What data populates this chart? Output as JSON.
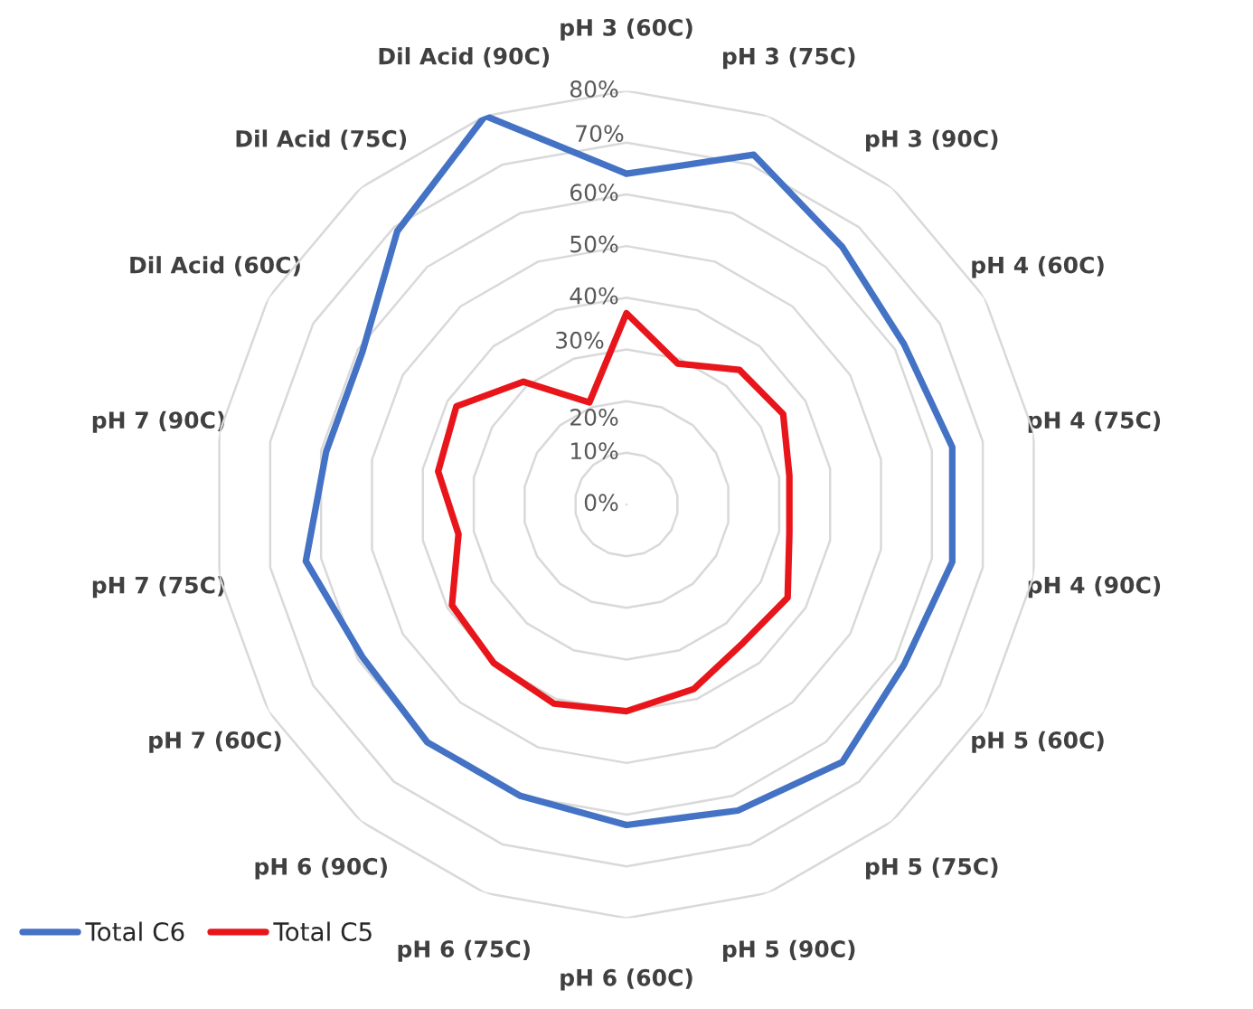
{
  "chart_data": {
    "type": "radar",
    "categories": [
      "pH 3 (60C)",
      "pH 3 (75C)",
      "pH 3 (90C)",
      "pH 4 (60C)",
      "pH 4 (75C)",
      "pH 4 (90C)",
      "pH 5 (60C)",
      "pH 5 (75C)",
      "pH 5 (90C)",
      "pH 6 (60C)",
      "pH 6 (75C)",
      "pH 6 (90C)",
      "pH 7 (60C)",
      "pH 7 (75C)",
      "pH 7 (90C)",
      "Dil Acid (60C)",
      "Dil Acid (75C)",
      "Dil Acid (90C)"
    ],
    "series": [
      {
        "name": "Total C6",
        "color": "#4472c4",
        "values": [
          64,
          72,
          65,
          62,
          64,
          64,
          62,
          65,
          63,
          62,
          60,
          60,
          59,
          63,
          59,
          59,
          69,
          80
        ]
      },
      {
        "name": "Total C5",
        "color": "#e8161b",
        "values": [
          37,
          29,
          34,
          35,
          32,
          32,
          36,
          35,
          38,
          40,
          41,
          40,
          39,
          33,
          37,
          38,
          31,
          21
        ]
      }
    ],
    "ylim": [
      0,
      80
    ],
    "yticks": [
      {
        "value": 0,
        "label": "0%"
      },
      {
        "value": 10,
        "label": "10%"
      },
      {
        "value": 20,
        "label": "20%"
      },
      {
        "value": 30,
        "label": "30%"
      },
      {
        "value": 40,
        "label": "40%"
      },
      {
        "value": 50,
        "label": "50%"
      },
      {
        "value": 60,
        "label": "60%"
      },
      {
        "value": 70,
        "label": "70%"
      },
      {
        "value": 80,
        "label": "80%"
      }
    ],
    "grid": true,
    "legend": "bottom left"
  }
}
